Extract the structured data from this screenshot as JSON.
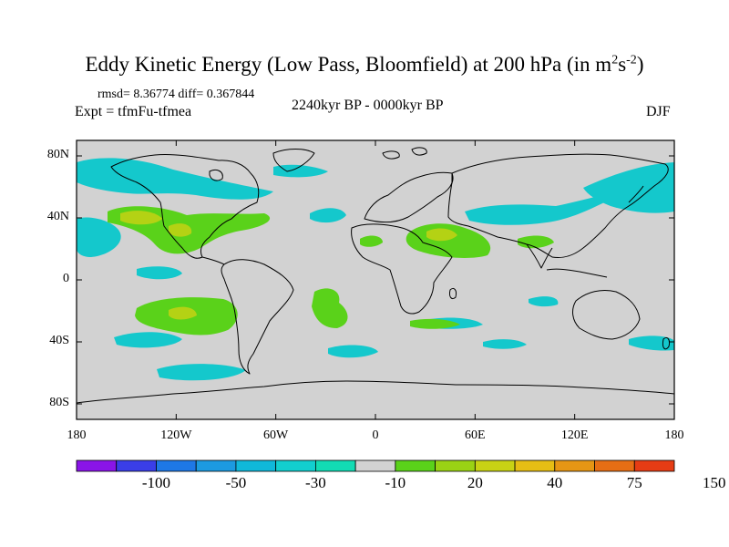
{
  "title": {
    "text": "Eddy Kinetic Energy (Low Pass, Bloomfield) at 200 hPa (in m",
    "sup1": "2",
    "mid": "s",
    "sup2": "-2",
    "end": ")"
  },
  "stats": "rmsd= 8.36774 diff= 0.367844",
  "experiment": "Expt = tfmFu-tfmea",
  "period": "2240kyr BP - 0000kyr BP",
  "season": "DJF",
  "y_axis": {
    "labels": [
      "80N",
      "40N",
      "0",
      "40S",
      "80S"
    ],
    "values": [
      80,
      40,
      0,
      -40,
      -80
    ]
  },
  "x_axis": {
    "labels": [
      "180",
      "120W",
      "60W",
      "0",
      "60E",
      "120E",
      "180"
    ],
    "values": [
      -180,
      -120,
      -60,
      0,
      60,
      120,
      180
    ]
  },
  "colorbar": {
    "labels": [
      "-100",
      "-50",
      "-30",
      "-10",
      "20",
      "40",
      "75",
      "150"
    ],
    "colors": [
      "#8a14e8",
      "#3a3ee8",
      "#1e78e6",
      "#1c9ae0",
      "#10b8da",
      "#12cfcf",
      "#12dcb4",
      "#d2d2d2",
      "#5ad21a",
      "#9ad214",
      "#c8d214",
      "#e6be14",
      "#e69614",
      "#e66e14",
      "#e63c14"
    ]
  },
  "colors": {
    "background": "#d2d2d2",
    "land": "#000000"
  }
}
